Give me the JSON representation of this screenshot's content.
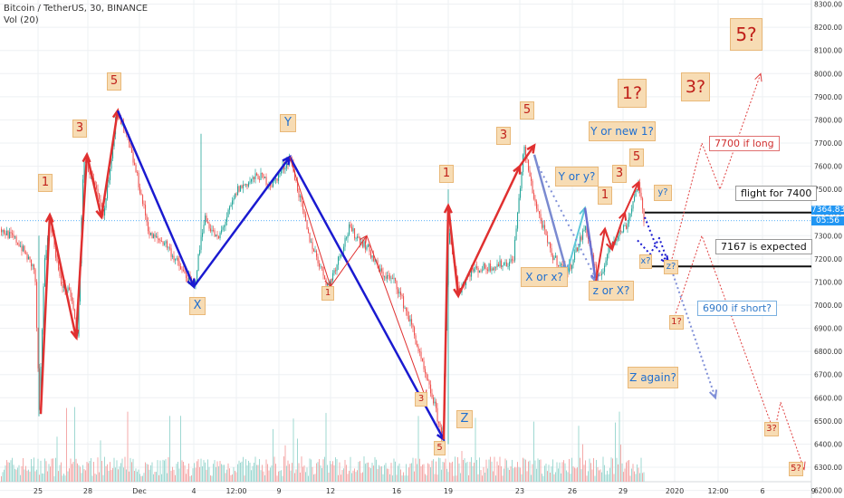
{
  "header": {
    "title": "Bitcoin / TetherUS, 30, BINANCE",
    "volume": "Vol (20)"
  },
  "price_tags": {
    "last": "7364.83",
    "timer": "05:56"
  },
  "chart_data": {
    "type": "candlestick",
    "title": "Bitcoin / TetherUS, 30, BINANCE",
    "y_ticks": [
      "8300.00",
      "8200.00",
      "8100.00",
      "8000.00",
      "7900.00",
      "7800.00",
      "7700.00",
      "7600.00",
      "7500.00",
      "7400.00",
      "7300.00",
      "7200.00",
      "7100.00",
      "7000.00",
      "6900.00",
      "6800.00",
      "6700.00",
      "6600.00",
      "6500.00",
      "6400.00",
      "6300.00",
      "6200.00"
    ],
    "ylim": [
      6175,
      8310
    ],
    "x_ticks": [
      "25",
      "28",
      "Dec",
      "4",
      "12:00",
      "9",
      "12",
      "16",
      "19",
      "23",
      "26",
      "29",
      "2020",
      "12:00",
      "6",
      "9"
    ],
    "last_price": 7364.83,
    "labels": [
      {
        "text": "1",
        "style": "orange"
      },
      {
        "text": "3",
        "style": "orange"
      },
      {
        "text": "5",
        "style": "orange"
      },
      {
        "text": "X",
        "style": "blue"
      },
      {
        "text": "Y",
        "style": "blue"
      },
      {
        "text": "1",
        "style": "orange"
      },
      {
        "text": "3",
        "style": "orange"
      },
      {
        "text": "5",
        "style": "orange"
      },
      {
        "text": "Z",
        "style": "blue"
      },
      {
        "text": "1",
        "style": "orange"
      },
      {
        "text": "3",
        "style": "orange"
      },
      {
        "text": "5",
        "style": "orange"
      },
      {
        "text": "X or x?",
        "style": "blue"
      },
      {
        "text": "Y or y?",
        "style": "blue"
      },
      {
        "text": "z or X?",
        "style": "blue"
      },
      {
        "text": "Y or new 1?",
        "style": "blue"
      },
      {
        "text": "1",
        "style": "orange"
      },
      {
        "text": "3",
        "style": "orange"
      },
      {
        "text": "5",
        "style": "orange"
      },
      {
        "text": "1?",
        "style": "orange"
      },
      {
        "text": "3?",
        "style": "orange"
      },
      {
        "text": "5?",
        "style": "orange"
      },
      {
        "text": "y?",
        "style": "blue"
      },
      {
        "text": "x?",
        "style": "blue"
      },
      {
        "text": "z?",
        "style": "blue"
      },
      {
        "text": "Z again?",
        "style": "blue"
      },
      {
        "text": "1?",
        "style": "orange"
      },
      {
        "text": "3?",
        "style": "orange"
      },
      {
        "text": "5?",
        "style": "orange"
      }
    ],
    "annotations": [
      {
        "text": "flight for 7400",
        "style": "white"
      },
      {
        "text": "7167 is expected",
        "style": "white"
      },
      {
        "text": "7700 if long",
        "style": "pink"
      },
      {
        "text": "6900 if short?",
        "style": "ltblue"
      }
    ],
    "levels": [
      7400,
      7167
    ],
    "colors": {
      "up": "#26a69a",
      "down": "#ef5350",
      "impulse": "#e03030",
      "correction": "#1a1ad0",
      "label_fill": "#f7dcb4"
    }
  }
}
